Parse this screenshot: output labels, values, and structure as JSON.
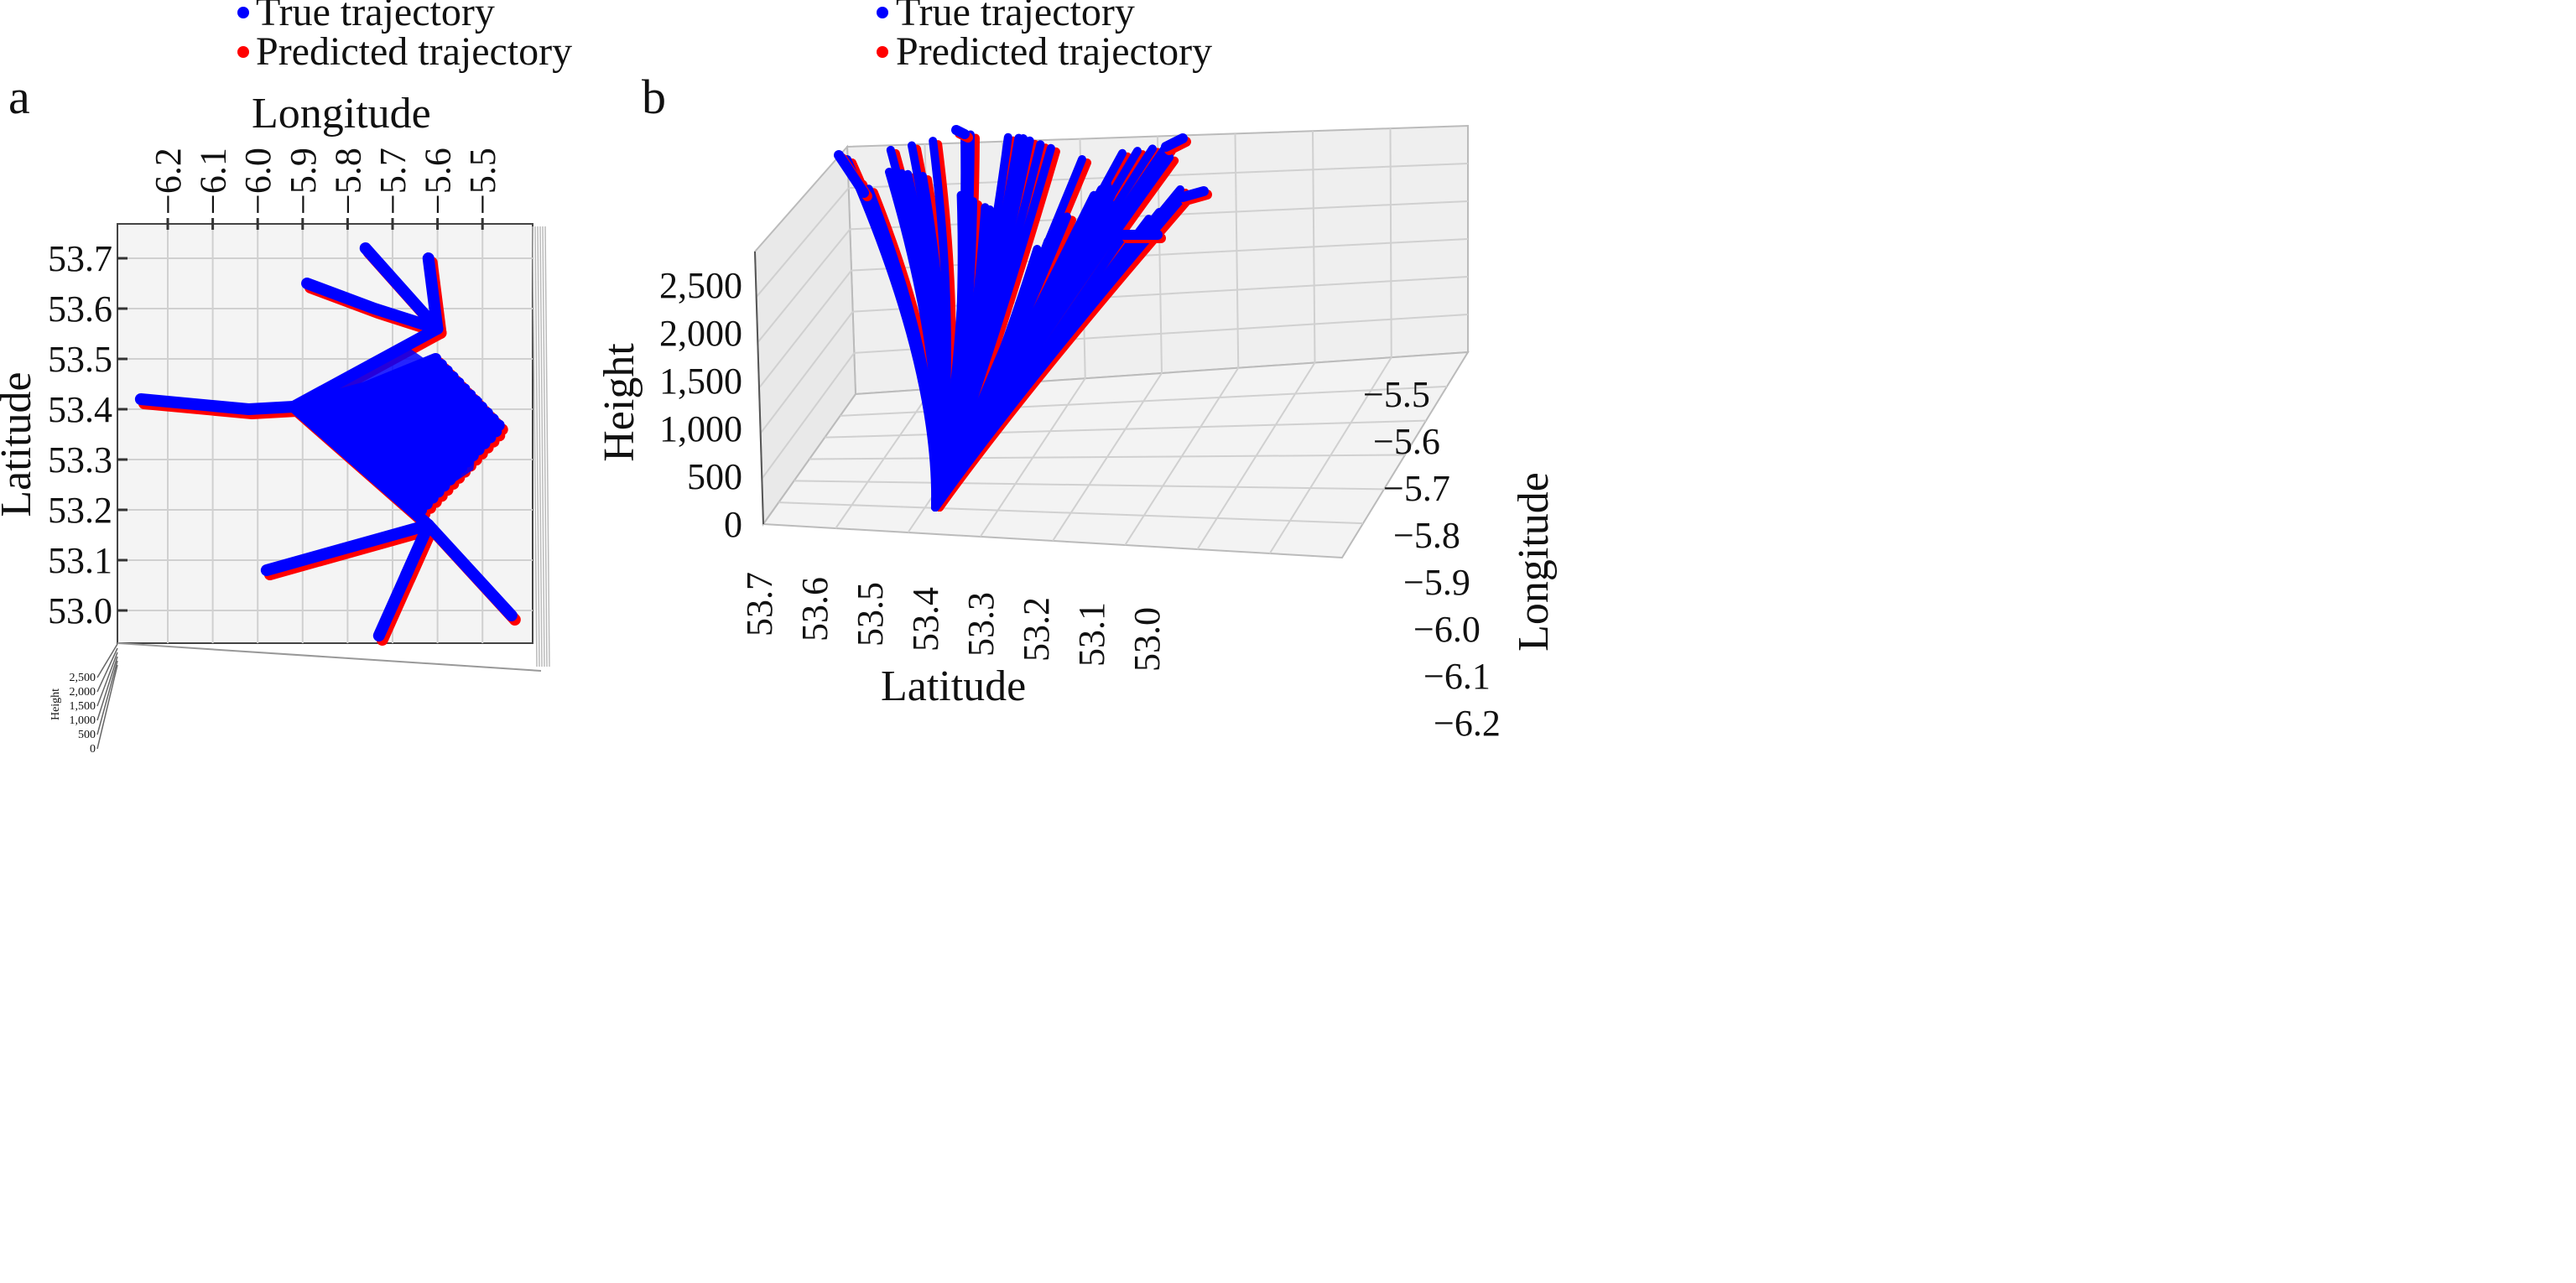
{
  "chart_data": [
    {
      "panel": "a",
      "type": "line",
      "view": "top-down 3D projection",
      "legend": {
        "placement": "top-center",
        "entries": [
          {
            "label": "True trajectory",
            "color": "#0000ff"
          },
          {
            "label": "Predicted trajectory",
            "color": "#ff0000"
          }
        ]
      },
      "xlabel": "Longitude",
      "ylabel": "Latitude",
      "zlabel": "Height",
      "xlim": [
        -6.2,
        -5.5
      ],
      "ylim": [
        53.0,
        53.7
      ],
      "xticks": [
        "−6.2",
        "−6.1",
        "−6.0",
        "−5.9",
        "−5.8",
        "−5.7",
        "−5.6",
        "−5.5"
      ],
      "yticks": [
        "53.7",
        "53.6",
        "53.5",
        "53.4",
        "53.3",
        "53.2",
        "53.1",
        "53.0"
      ],
      "zticks": [
        "2,500",
        "2,000",
        "1,500",
        "1,000",
        "500",
        "0"
      ],
      "grid": true,
      "paths": [
        [
          [
            -6.26,
            53.42
          ],
          [
            -6.02,
            53.4
          ],
          [
            -5.92,
            53.405
          ]
        ],
        [
          [
            -5.92,
            53.405
          ],
          [
            -5.6,
            53.56
          ],
          [
            -5.76,
            53.72
          ]
        ],
        [
          [
            -5.6,
            53.56
          ],
          [
            -5.62,
            53.7
          ]
        ],
        [
          [
            -5.6,
            53.56
          ],
          [
            -5.74,
            53.6
          ],
          [
            -5.89,
            53.65
          ]
        ],
        [
          [
            -5.92,
            53.405
          ],
          [
            -5.62,
            53.17
          ],
          [
            -5.73,
            52.95
          ]
        ],
        [
          [
            -5.62,
            53.17
          ],
          [
            -5.98,
            53.08
          ]
        ],
        [
          [
            -5.62,
            53.17
          ],
          [
            -5.435,
            52.99
          ]
        ],
        [
          [
            -5.62,
            53.17
          ],
          [
            -5.67,
            53.07
          ]
        ]
      ],
      "fan_from": [
        -5.92,
        53.405
      ],
      "fan_to_lon_range": [
        -5.66,
        -5.46
      ],
      "fan_to_lat_range": [
        53.2,
        53.5
      ]
    },
    {
      "panel": "b",
      "type": "line",
      "view": "3D perspective",
      "legend": {
        "placement": "top-center",
        "entries": [
          {
            "label": "True trajectory",
            "color": "#0000ff"
          },
          {
            "label": "Predicted trajectory",
            "color": "#ff0000"
          }
        ]
      },
      "xlabel": "Latitude",
      "ylabel": "Longitude",
      "zlabel": "Height",
      "xticks": [
        "53.7",
        "53.6",
        "53.5",
        "53.4",
        "53.3",
        "53.2",
        "53.1",
        "53.0"
      ],
      "yticks": [
        "−5.5",
        "−5.6",
        "−5.7",
        "−5.8",
        "−5.9",
        "−6.0",
        "−6.1",
        "−6.2"
      ],
      "zticks": [
        "2,500",
        "2,000",
        "1,500",
        "1,000",
        "500",
        "0"
      ],
      "zlim": [
        0,
        2500
      ],
      "grid": true
    }
  ],
  "colors": {
    "true": "#0000ff",
    "predicted": "#ff0000",
    "pane": "#f2f2f2",
    "grid": "#d0d0d0"
  }
}
